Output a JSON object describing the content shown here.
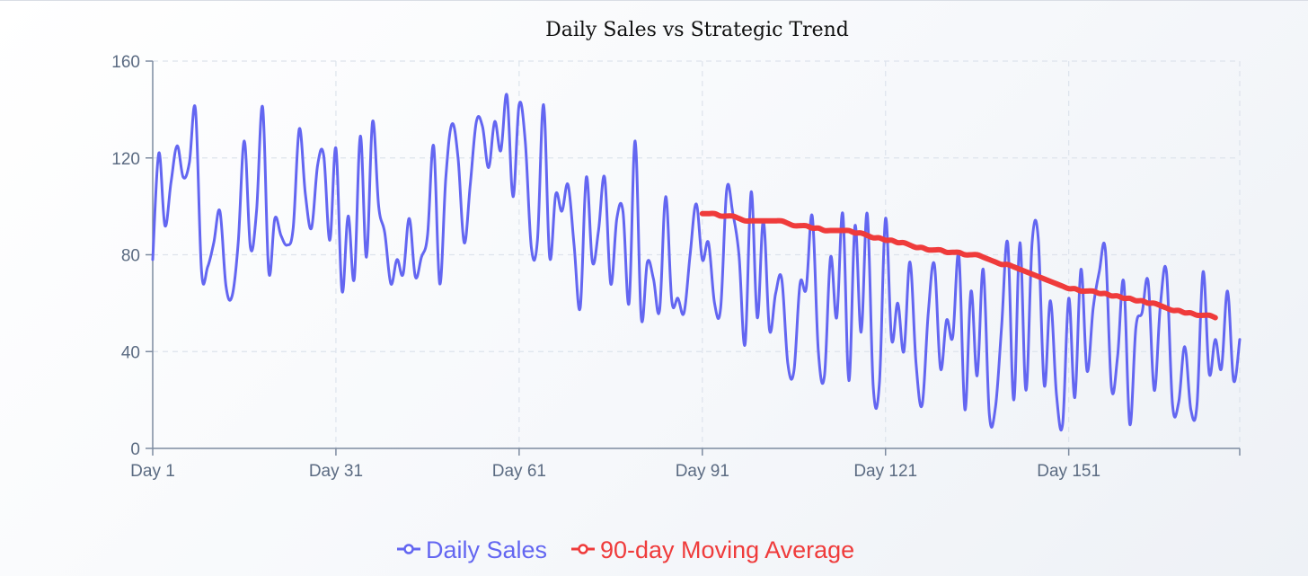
{
  "chart_data": {
    "type": "line",
    "title": "Daily Sales vs Strategic Trend",
    "xlabel": "",
    "ylabel": "",
    "ylim": [
      0,
      160
    ],
    "yticks": [
      0,
      40,
      80,
      120,
      160
    ],
    "xtick_labels": [
      "Day 1",
      "Day 31",
      "Day 61",
      "Day 91",
      "Day 121",
      "Day 151"
    ],
    "xtick_days": [
      1,
      31,
      61,
      91,
      121,
      151
    ],
    "x_range_days": [
      1,
      179
    ],
    "grid": true,
    "legend_position": "bottom-center",
    "series": [
      {
        "name": "Daily Sales",
        "color": "#6366f1",
        "x_start_day": 1,
        "values": [
          78,
          122,
          92,
          110,
          125,
          112,
          118,
          140,
          73,
          75,
          85,
          98,
          67,
          63,
          85,
          127,
          83,
          98,
          141,
          73,
          95,
          88,
          84,
          91,
          132,
          105,
          91,
          117,
          121,
          86,
          124,
          65,
          96,
          70,
          129,
          79,
          135,
          100,
          89,
          68,
          78,
          72,
          95,
          71,
          79,
          88,
          125,
          68,
          112,
          134,
          120,
          85,
          109,
          135,
          133,
          116,
          135,
          123,
          146,
          104,
          142,
          127,
          83,
          86,
          142,
          79,
          105,
          98,
          109,
          84,
          58,
          112,
          77,
          90,
          112,
          68,
          95,
          98,
          60,
          127,
          54,
          77,
          70,
          57,
          104,
          61,
          62,
          56,
          80,
          101,
          78,
          85,
          60,
          58,
          107,
          97,
          80,
          43,
          106,
          54,
          94,
          49,
          64,
          70,
          35,
          32,
          68,
          66,
          96,
          40,
          30,
          79,
          54,
          97,
          28,
          92,
          48,
          97,
          25,
          27,
          95,
          45,
          60,
          40,
          77,
          35,
          18,
          56,
          76,
          33,
          53,
          46,
          80,
          16,
          65,
          30,
          74,
          14,
          17,
          50,
          85,
          20,
          85,
          24,
          85,
          87,
          26,
          61,
          22,
          10,
          62,
          21,
          74,
          32,
          58,
          73,
          82,
          25,
          38,
          69,
          10,
          50,
          56,
          69,
          24,
          59,
          73,
          18,
          19,
          42,
          16,
          18,
          73,
          31,
          45,
          33,
          65,
          28,
          45
        ],
        "stroke_width": 3
      },
      {
        "name": "90-day Moving Average",
        "color": "#ef3b3b",
        "x_start_day": 91,
        "values": [
          97,
          97,
          97,
          96,
          96,
          96,
          95,
          94,
          94,
          94,
          94,
          94,
          94,
          94,
          93,
          92,
          92,
          92,
          91,
          91,
          90,
          90,
          90,
          90,
          90,
          89,
          89,
          88,
          87,
          87,
          86,
          86,
          85,
          85,
          84,
          83,
          83,
          82,
          82,
          82,
          81,
          81,
          81,
          80,
          80,
          80,
          79,
          78,
          77,
          76,
          76,
          75,
          74,
          73,
          72,
          71,
          70,
          69,
          68,
          67,
          66,
          66,
          65,
          65,
          65,
          64,
          64,
          63,
          63,
          62,
          62,
          61,
          61,
          60,
          60,
          59,
          58,
          57,
          57,
          56,
          56,
          55,
          55,
          55,
          54
        ],
        "stroke_width": 6
      }
    ]
  }
}
